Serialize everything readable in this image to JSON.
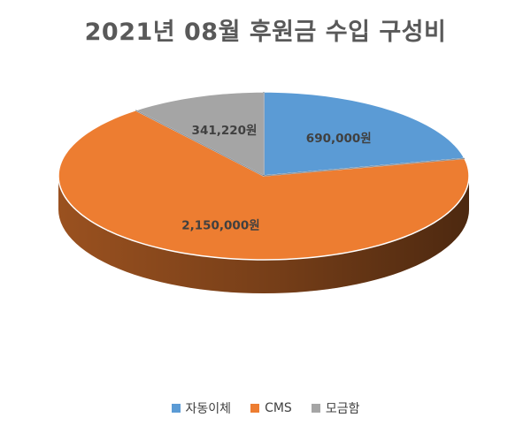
{
  "chart_data": {
    "type": "pie",
    "title": "2021년 08월 후원금 수입 구성비",
    "categories": [
      "자동이체",
      "CMS",
      "모금함"
    ],
    "values": [
      690000,
      2150000,
      341220
    ],
    "data_labels": [
      "690,000원",
      "2,150,000원",
      "341,220원"
    ],
    "colors": [
      "#5B9BD5",
      "#ED7D31",
      "#A5A5A5"
    ],
    "style": "3d",
    "legend_position": "bottom",
    "start_angle_deg": 0,
    "direction": "clockwise"
  }
}
